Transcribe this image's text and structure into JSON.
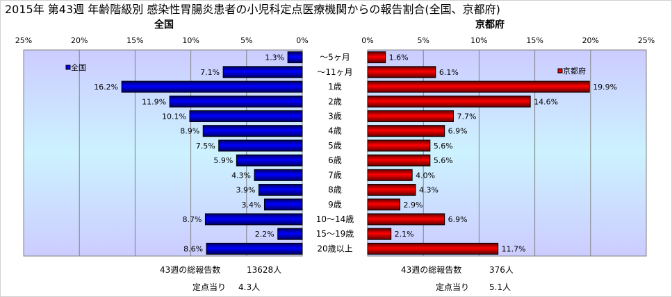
{
  "chart_data": {
    "type": "bar",
    "title": "2015年 第43週 年齢階級別 感染性胃腸炎患者の小児科定点医療機関からの報告割合(全国、京都府)",
    "categories": [
      "～5ヶ月",
      "～11ヶ月",
      "1歳",
      "2歳",
      "3歳",
      "4歳",
      "5歳",
      "6歳",
      "7歳",
      "8歳",
      "9歳",
      "10～14歳",
      "15～19歳",
      "20歳以上"
    ],
    "xlim": [
      0,
      25
    ],
    "grid": true,
    "tick_labels": [
      "0%",
      "5%",
      "10%",
      "15%",
      "20%",
      "25%"
    ],
    "series": [
      {
        "name": "全国",
        "panel_title": "全国",
        "legend": "全国",
        "legend_placement": "top-left",
        "color": "#0000ff",
        "values": [
          1.3,
          7.1,
          16.2,
          11.9,
          10.1,
          8.9,
          7.5,
          5.9,
          4.3,
          3.9,
          3.4,
          8.7,
          2.2,
          8.6
        ],
        "labels": [
          "1.3%",
          "7.1%",
          "16.2%",
          "11.9%",
          "10.1%",
          "8.9%",
          "7.5%",
          "5.9%",
          "4.3%",
          "3.9%",
          "3.4%",
          "8.7%",
          "2.2%",
          "8.6%"
        ]
      },
      {
        "name": "京都府",
        "panel_title": "京都府",
        "legend": "京都府",
        "legend_placement": "top-right",
        "color": "#ff0000",
        "values": [
          1.6,
          6.1,
          19.9,
          14.6,
          7.7,
          6.9,
          5.6,
          5.6,
          4.0,
          4.3,
          2.9,
          6.9,
          2.1,
          11.7
        ],
        "labels": [
          "1.6%",
          "6.1%",
          "19.9%",
          "14.6%",
          "7.7%",
          "6.9%",
          "5.6%",
          "5.6%",
          "4.0%",
          "4.3%",
          "2.9%",
          "6.9%",
          "2.1%",
          "11.7%"
        ]
      }
    ]
  },
  "footer": {
    "national": {
      "total_label": "43週の総報告数",
      "total_value": "13628人",
      "per_label": "定点当り",
      "per_value": "4.3人"
    },
    "kyoto": {
      "total_label": "43週の総報告数",
      "total_value": "376人",
      "per_label": "定点当り",
      "per_value": "5.1人"
    }
  }
}
